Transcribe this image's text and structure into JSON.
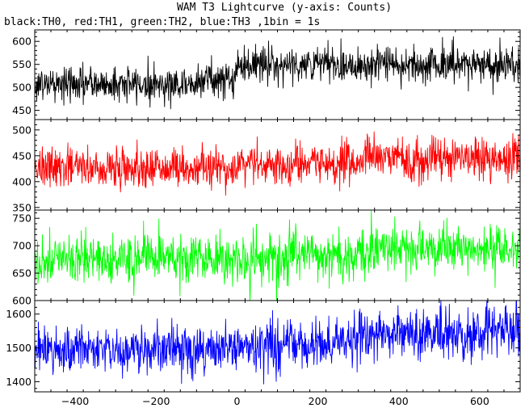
{
  "header": {
    "title": "WAM T3 Lightcurve (y-axis: Counts)",
    "subtitle": "black:TH0, red:TH1, green:TH2, blue:TH3 ,1bin = 1s"
  },
  "chart_data": {
    "type": "line",
    "title": "WAM T3 Lightcurve (y-axis: Counts)",
    "subtitle": "black:TH0, red:TH1, green:TH2, blue:TH3 ,1bin = 1s",
    "xlabel": "",
    "xlim": [
      -500,
      700
    ],
    "x_ticks": [
      -400,
      -200,
      0,
      200,
      400,
      600
    ],
    "x_tick_labels": [
      "−400",
      "−200",
      "0",
      "200",
      "400",
      "600"
    ],
    "bin_seconds": 1,
    "grid": false,
    "panels": [
      {
        "name": "TH0",
        "color": "#000000",
        "ylim": [
          430,
          625
        ],
        "y_ticks": [
          450,
          500,
          550,
          600
        ],
        "y_tick_labels": [
          "450",
          "500",
          "550",
          "600"
        ],
        "segments": [
          {
            "x_start": -500,
            "x_end": -100,
            "mean": 507,
            "noise_sd": 19
          },
          {
            "x_start": -100,
            "x_end": 0,
            "mean": 518,
            "noise_sd": 19
          },
          {
            "x_start": 0,
            "x_end": 700,
            "mean": 550,
            "noise_sd": 20
          }
        ]
      },
      {
        "name": "TH1",
        "color": "#ff0000",
        "ylim": [
          345,
          520
        ],
        "y_ticks": [
          350,
          400,
          450,
          500
        ],
        "y_tick_labels": [
          "350",
          "400",
          "450",
          "500"
        ],
        "segments": [
          {
            "x_start": -500,
            "x_end": 0,
            "mean": 427,
            "noise_sd": 19
          },
          {
            "x_start": 0,
            "x_end": 300,
            "mean": 433,
            "noise_sd": 19
          },
          {
            "x_start": 300,
            "x_end": 700,
            "mean": 445,
            "noise_sd": 20
          }
        ]
      },
      {
        "name": "TH2",
        "color": "#00ff00",
        "ylim": [
          600,
          765
        ],
        "y_ticks": [
          600,
          650,
          700,
          750
        ],
        "y_tick_labels": [
          "600",
          "650",
          "700",
          "750"
        ],
        "segments": [
          {
            "x_start": -500,
            "x_end": 0,
            "mean": 676,
            "noise_sd": 22
          },
          {
            "x_start": 0,
            "x_end": 300,
            "mean": 680,
            "noise_sd": 22
          },
          {
            "x_start": 300,
            "x_end": 700,
            "mean": 694,
            "noise_sd": 22
          }
        ]
      },
      {
        "name": "TH3",
        "color": "#0000ff",
        "ylim": [
          1370,
          1640
        ],
        "y_ticks": [
          1400,
          1500,
          1600
        ],
        "y_tick_labels": [
          "1400",
          "1500",
          "1600"
        ],
        "segments": [
          {
            "x_start": -500,
            "x_end": 0,
            "mean": 1492,
            "noise_sd": 36
          },
          {
            "x_start": 0,
            "x_end": 300,
            "mean": 1510,
            "noise_sd": 36
          },
          {
            "x_start": 300,
            "x_end": 700,
            "mean": 1545,
            "noise_sd": 37
          }
        ]
      }
    ]
  }
}
